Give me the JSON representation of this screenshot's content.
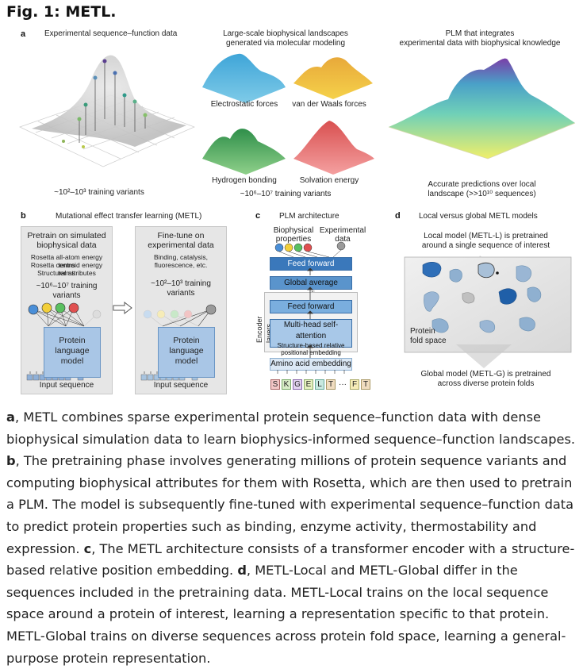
{
  "figure_title": "Fig. 1: METL.",
  "panel_a": {
    "label": "a",
    "experimental_title": "Experimental sequence–function data",
    "experimental_variants": "~10²–10³ training variants",
    "landscapes_title_1": "Large-scale biophysical landscapes",
    "landscapes_title_2": "generated via molecular modeling",
    "electrostatic": "Electrostatic forces",
    "vdw": "van der Waals forces",
    "hbond": "Hydrogen bonding",
    "solvation": "Solvation energy",
    "landscape_variants": "~10⁶–10⁷ training variants",
    "plm_title_1": "PLM that integrates",
    "plm_title_2": "experimental data with biophysical knowledge",
    "plm_pred_1": "Accurate predictions over local",
    "plm_pred_2": "landscape (>>10¹⁰ sequences)"
  },
  "panel_b": {
    "label": "b",
    "title": "Mutational effect transfer learning (METL)",
    "pretrain_title_1": "Pretrain on simulated",
    "pretrain_title_2": "biophysical data",
    "pretrain_attr_1": "Rosetta all-atom energy terms",
    "pretrain_attr_2": "Rosetta centroid energy terms",
    "pretrain_attr_3": "Structural attributes",
    "pretrain_variants": "~10⁶–10⁷ training variants",
    "finetune_title_1": "Fine-tune on",
    "finetune_title_2": "experimental data",
    "finetune_attr_1": "Binding, catalysis,",
    "finetune_attr_2": "fluorescence, etc.",
    "finetune_variants": "~10²–10³ training variants",
    "model_1": "Protein",
    "model_2": "language",
    "model_3": "model",
    "input": "Input sequence"
  },
  "panel_c": {
    "label": "c",
    "title": "PLM architecture",
    "bio_1": "Biophysical",
    "bio_2": "properties",
    "exp_1": "Experimental",
    "exp_2": "data",
    "ff_top": "Feed forward",
    "gap": "Global average pooling",
    "encoder_layers": "Encoder layers",
    "ff_inner": "Feed forward",
    "mhsa": "Multi-head self-attention",
    "pos_1": "Structure-based relative",
    "pos_2": "positional embedding",
    "embed": "Amino acid embedding",
    "tokens": [
      "S",
      "K",
      "G",
      "E",
      "L",
      "T",
      "F",
      "T"
    ],
    "ellipsis": "···"
  },
  "panel_d": {
    "label": "d",
    "title": "Local versus global METL models",
    "local_1": "Local model (METL-L) is pretrained",
    "local_2": "around a single sequence of interest",
    "fold_1": "Protein",
    "fold_2": "fold space",
    "global_1": "Global model (METL-G) is pretrained",
    "global_2": "across diverse protein folds"
  },
  "caption": {
    "a_label": "a",
    "a_text": ", METL combines sparse experimental protein sequence–function data with dense biophysical simulation data to learn biophysics-informed sequence–function landscapes. ",
    "b_label": "b",
    "b_text": ", The pretraining phase involves generating millions of protein sequence variants and computing biophysical attributes for them with Rosetta, which are then used to pretrain a PLM. The model is subsequently fine-tuned with experimental sequence–function data to predict protein properties such as binding, enzyme activity, thermostability and expression. ",
    "c_label": "c",
    "c_text": ", The METL architecture consists of a transformer encoder with a structure-based relative position embedding. ",
    "d_label": "d",
    "d_text": ", METL-Local and METL-Global differ in the sequences included in the pretraining data. METL-Local trains on the local sequence space around a protein of interest, learning a representation specific to that protein. METL-Global trains on diverse sequences across protein fold space, learning a general-purpose protein representation."
  }
}
